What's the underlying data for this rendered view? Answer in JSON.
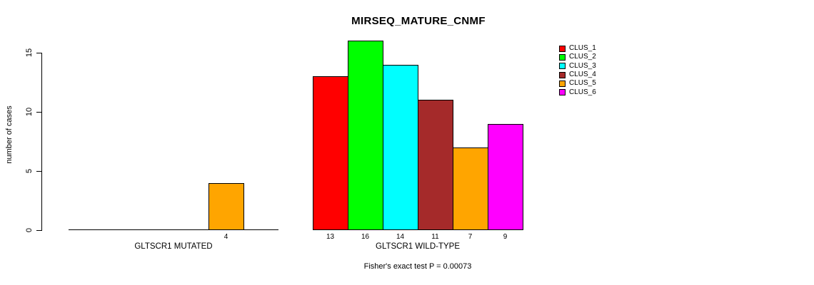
{
  "chart_data": {
    "type": "bar",
    "title": "MIRSEQ_MATURE_CNMF",
    "ylabel": "number of cases",
    "xlabel": "",
    "ylim": [
      0,
      16
    ],
    "yticks": [
      0,
      5,
      10,
      15
    ],
    "grid": false,
    "legend_position": "top-right",
    "categories": [
      "CLUS_1",
      "CLUS_2",
      "CLUS_3",
      "CLUS_4",
      "CLUS_5",
      "CLUS_6"
    ],
    "colors": [
      "#FF0000",
      "#00FF00",
      "#00FFFF",
      "#A52A2A",
      "#FFA500",
      "#FF00FF"
    ],
    "groups": [
      {
        "label": "GLTSCR1 MUTATED",
        "values": [
          0,
          0,
          0,
          0,
          4,
          0
        ],
        "bar_labels": [
          "",
          "",
          "",
          "",
          "4",
          ""
        ]
      },
      {
        "label": "GLTSCR1 WILD-TYPE",
        "values": [
          13,
          16,
          14,
          11,
          7,
          9
        ],
        "bar_labels": [
          "13",
          "16",
          "14",
          "11",
          "7",
          "9"
        ]
      }
    ],
    "annotation": "Fisher's exact test P = 0.00073"
  },
  "legend": {
    "items": [
      {
        "label": "CLUS_1",
        "color": "#FF0000"
      },
      {
        "label": "CLUS_2",
        "color": "#00FF00"
      },
      {
        "label": "CLUS_3",
        "color": "#00FFFF"
      },
      {
        "label": "CLUS_4",
        "color": "#A52A2A"
      },
      {
        "label": "CLUS_5",
        "color": "#FFA500"
      },
      {
        "label": "CLUS_6",
        "color": "#FF00FF"
      }
    ]
  },
  "colors": {
    "axis": "#000000",
    "background": "#FFFFFF",
    "text": "#000000"
  }
}
